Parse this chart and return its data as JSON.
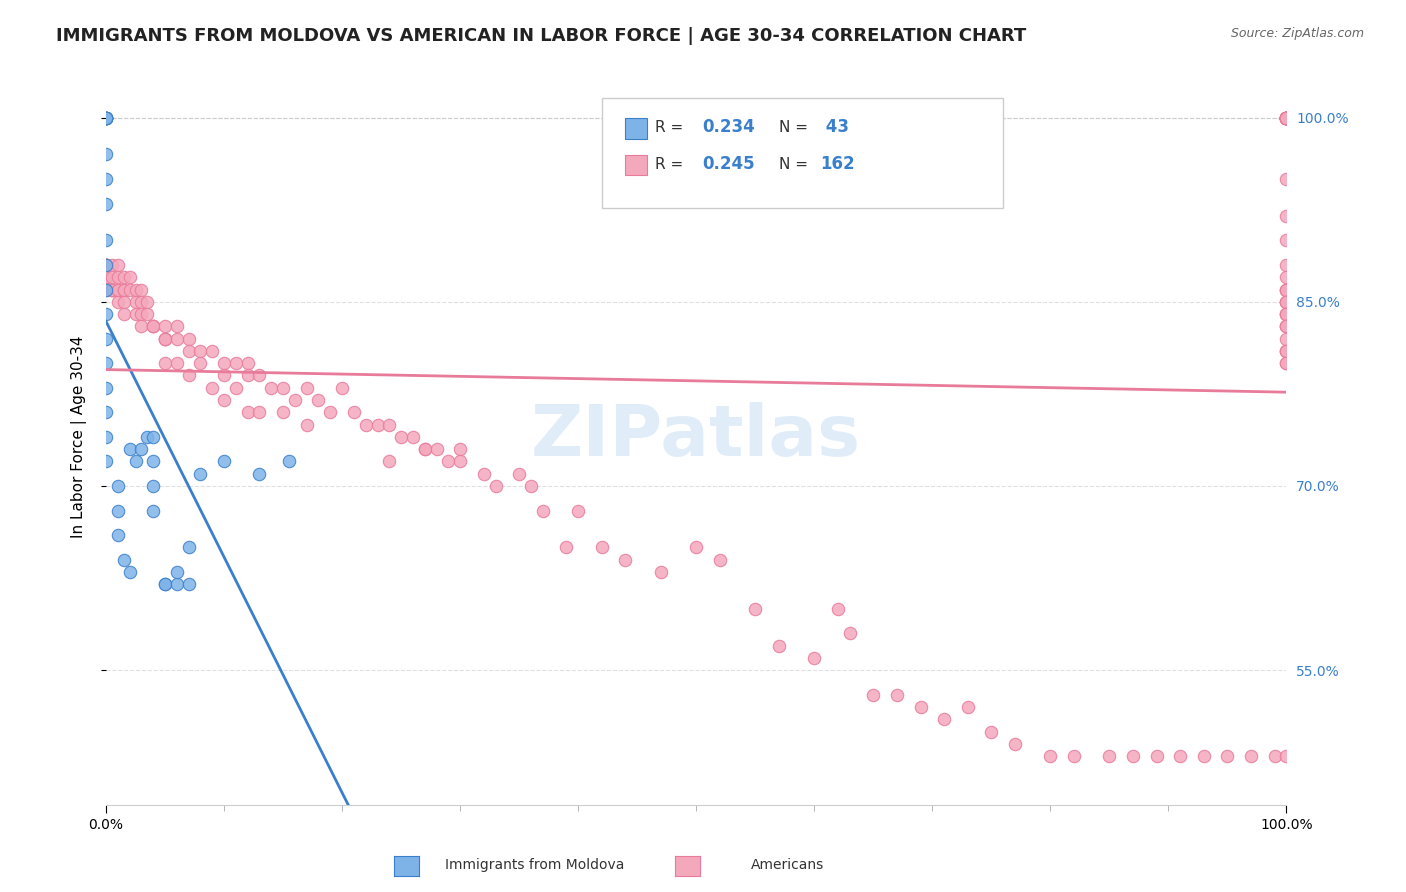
{
  "title": "IMMIGRANTS FROM MOLDOVA VS AMERICAN IN LABOR FORCE | AGE 30-34 CORRELATION CHART",
  "source": "Source: ZipAtlas.com",
  "xlabel": "",
  "ylabel": "In Labor Force | Age 30-34",
  "xlim": [
    0,
    1
  ],
  "ylim": [
    0.44,
    1.04
  ],
  "right_yticks": [
    0.55,
    0.7,
    0.85,
    1.0
  ],
  "right_yticklabels": [
    "55.0%",
    "70.0%",
    "85.0%",
    "100.0%"
  ],
  "xtick_labels": [
    "0.0%",
    "100.0%"
  ],
  "xtick_positions": [
    0,
    1
  ],
  "legend_labels": [
    "Immigrants from Moldova",
    "Americans"
  ],
  "legend_r": [
    "R = 0.234",
    "R = 0.245"
  ],
  "legend_n": [
    "N =  43",
    "N = 162"
  ],
  "blue_color": "#7eb3e8",
  "pink_color": "#f4a8bc",
  "blue_line_color": "#3a7fcc",
  "pink_line_color": "#e87a9a",
  "blue_scatter": {
    "x": [
      0.0,
      0.0,
      0.0,
      0.0,
      0.0,
      0.0,
      0.0,
      0.0,
      0.0,
      0.0,
      0.0,
      0.0,
      0.0,
      0.0,
      0.0,
      0.0,
      0.0,
      0.0,
      0.0,
      0.0,
      0.01,
      0.01,
      0.01,
      0.015,
      0.02,
      0.02,
      0.025,
      0.03,
      0.035,
      0.04,
      0.04,
      0.04,
      0.04,
      0.05,
      0.05,
      0.06,
      0.06,
      0.07,
      0.07,
      0.08,
      0.1,
      0.13,
      0.155
    ],
    "y": [
      1.0,
      1.0,
      1.0,
      1.0,
      1.0,
      1.0,
      1.0,
      0.97,
      0.95,
      0.93,
      0.9,
      0.88,
      0.86,
      0.84,
      0.82,
      0.8,
      0.78,
      0.76,
      0.74,
      0.72,
      0.7,
      0.68,
      0.66,
      0.64,
      0.63,
      0.73,
      0.72,
      0.73,
      0.74,
      0.74,
      0.72,
      0.7,
      0.68,
      0.62,
      0.62,
      0.62,
      0.63,
      0.65,
      0.62,
      0.71,
      0.72,
      0.71,
      0.72
    ]
  },
  "pink_scatter": {
    "x": [
      0.0,
      0.0,
      0.0,
      0.0,
      0.0,
      0.0,
      0.0,
      0.0,
      0.0,
      0.0,
      0.0,
      0.005,
      0.005,
      0.005,
      0.005,
      0.005,
      0.01,
      0.01,
      0.01,
      0.01,
      0.01,
      0.015,
      0.015,
      0.015,
      0.015,
      0.015,
      0.02,
      0.02,
      0.025,
      0.025,
      0.025,
      0.03,
      0.03,
      0.03,
      0.03,
      0.035,
      0.035,
      0.04,
      0.04,
      0.04,
      0.05,
      0.05,
      0.05,
      0.05,
      0.05,
      0.06,
      0.06,
      0.06,
      0.07,
      0.07,
      0.07,
      0.08,
      0.08,
      0.09,
      0.09,
      0.1,
      0.1,
      0.1,
      0.11,
      0.11,
      0.12,
      0.12,
      0.12,
      0.13,
      0.13,
      0.14,
      0.15,
      0.15,
      0.16,
      0.17,
      0.17,
      0.18,
      0.19,
      0.2,
      0.21,
      0.22,
      0.23,
      0.24,
      0.24,
      0.25,
      0.26,
      0.27,
      0.27,
      0.28,
      0.29,
      0.3,
      0.3,
      0.32,
      0.33,
      0.35,
      0.36,
      0.37,
      0.39,
      0.4,
      0.42,
      0.44,
      0.47,
      0.5,
      0.52,
      0.55,
      0.57,
      0.6,
      0.62,
      0.63,
      0.65,
      0.67,
      0.69,
      0.71,
      0.73,
      0.75,
      0.77,
      0.8,
      0.82,
      0.85,
      0.87,
      0.89,
      0.91,
      0.93,
      0.95,
      0.97,
      0.99,
      1.0,
      1.0,
      1.0,
      1.0,
      1.0,
      1.0,
      1.0,
      1.0,
      1.0,
      1.0,
      1.0,
      1.0,
      1.0,
      1.0,
      1.0,
      1.0,
      1.0,
      1.0,
      1.0,
      1.0,
      1.0,
      1.0,
      1.0,
      1.0,
      1.0,
      1.0,
      1.0,
      1.0,
      1.0,
      1.0,
      1.0,
      1.0,
      1.0,
      1.0,
      1.0,
      1.0,
      1.0,
      1.0,
      1.0,
      1.0,
      1.0,
      1.0
    ],
    "y": [
      0.88,
      0.88,
      0.87,
      0.88,
      0.88,
      0.88,
      0.88,
      0.87,
      0.88,
      0.87,
      0.86,
      0.88,
      0.87,
      0.86,
      0.86,
      0.86,
      0.88,
      0.87,
      0.86,
      0.86,
      0.85,
      0.87,
      0.86,
      0.86,
      0.85,
      0.84,
      0.87,
      0.86,
      0.86,
      0.85,
      0.84,
      0.86,
      0.85,
      0.84,
      0.83,
      0.85,
      0.84,
      0.83,
      0.83,
      0.83,
      0.82,
      0.83,
      0.82,
      0.82,
      0.8,
      0.83,
      0.82,
      0.8,
      0.82,
      0.81,
      0.79,
      0.81,
      0.8,
      0.81,
      0.78,
      0.8,
      0.79,
      0.77,
      0.8,
      0.78,
      0.8,
      0.79,
      0.76,
      0.79,
      0.76,
      0.78,
      0.78,
      0.76,
      0.77,
      0.78,
      0.75,
      0.77,
      0.76,
      0.78,
      0.76,
      0.75,
      0.75,
      0.75,
      0.72,
      0.74,
      0.74,
      0.73,
      0.73,
      0.73,
      0.72,
      0.73,
      0.72,
      0.71,
      0.7,
      0.71,
      0.7,
      0.68,
      0.65,
      0.68,
      0.65,
      0.64,
      0.63,
      0.65,
      0.64,
      0.6,
      0.57,
      0.56,
      0.6,
      0.58,
      0.53,
      0.53,
      0.52,
      0.51,
      0.52,
      0.5,
      0.49,
      0.48,
      0.48,
      0.48,
      0.48,
      0.48,
      0.48,
      0.48,
      0.48,
      0.48,
      0.48,
      0.48,
      1.0,
      1.0,
      1.0,
      1.0,
      1.0,
      1.0,
      1.0,
      1.0,
      1.0,
      1.0,
      1.0,
      1.0,
      1.0,
      1.0,
      1.0,
      1.0,
      1.0,
      1.0,
      0.95,
      0.92,
      0.9,
      0.88,
      0.87,
      0.86,
      0.86,
      0.86,
      0.85,
      0.85,
      0.85,
      0.84,
      0.84,
      0.84,
      0.83,
      0.83,
      0.83,
      0.82,
      0.81,
      0.81,
      0.81,
      0.8,
      0.8
    ]
  },
  "watermark": "ZIPatlas",
  "background_color": "#ffffff",
  "grid_color": "#e0e0e0"
}
